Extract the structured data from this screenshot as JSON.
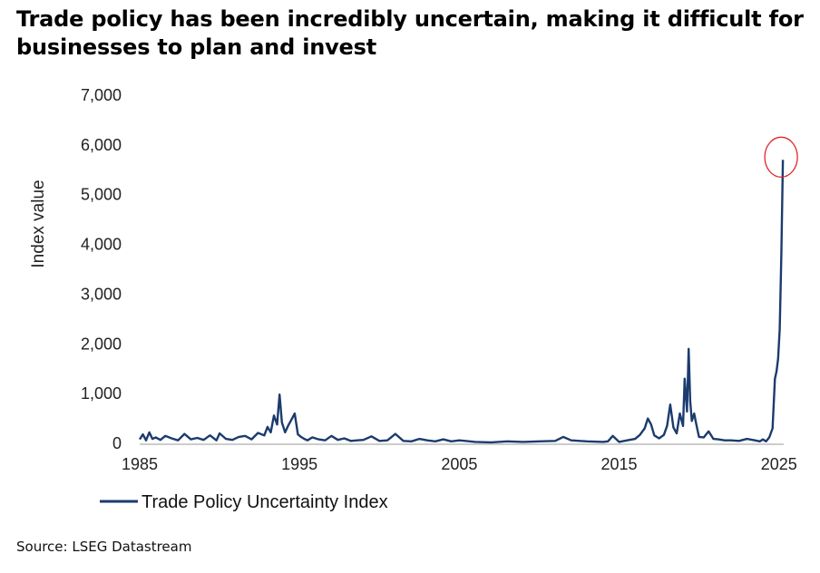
{
  "title": "Trade policy has been incredibly uncertain, making it difficult for businesses to plan and invest",
  "source": "Source: LSEG Datastream",
  "chart_data": {
    "type": "line",
    "title": "Trade policy has been incredibly uncertain, making it difficult for businesses to plan and invest",
    "xlabel": "",
    "ylabel": "Index value",
    "xlim": [
      1985,
      2025.3
    ],
    "ylim": [
      0,
      7000
    ],
    "x_ticks": [
      1985,
      1995,
      2005,
      2015,
      2025
    ],
    "y_ticks": [
      0,
      1000,
      2000,
      3000,
      4000,
      5000,
      6000,
      7000
    ],
    "y_tick_labels": [
      "0",
      "1,000",
      "2,000",
      "3,000",
      "4,000",
      "5,000",
      "6,000",
      "7,000"
    ],
    "grid": false,
    "legend_position": "bottom-left",
    "line_color": "#1c3b6e",
    "highlight_color": "#e0262a",
    "highlight_point": [
      2025.25,
      5700
    ],
    "series": [
      {
        "name": "Trade Policy Uncertainty Index",
        "x": [
          1985.0,
          1985.2,
          1985.4,
          1985.6,
          1985.8,
          1986.0,
          1986.3,
          1986.6,
          1987.0,
          1987.4,
          1987.8,
          1988.2,
          1988.6,
          1989.0,
          1989.4,
          1989.8,
          1990.0,
          1990.4,
          1990.8,
          1991.2,
          1991.6,
          1992.0,
          1992.4,
          1992.8,
          1993.0,
          1993.2,
          1993.4,
          1993.6,
          1993.75,
          1993.9,
          1994.1,
          1994.3,
          1994.5,
          1994.7,
          1994.9,
          1995.1,
          1995.3,
          1995.5,
          1995.8,
          1996.2,
          1996.6,
          1997.0,
          1997.4,
          1997.8,
          1998.2,
          1998.6,
          1999.0,
          1999.5,
          2000.0,
          2000.5,
          2001.0,
          2001.5,
          2002.0,
          2002.5,
          2003.0,
          2003.5,
          2004.0,
          2004.5,
          2005.0,
          2006.0,
          2007.0,
          2008.0,
          2009.0,
          2010.0,
          2011.0,
          2011.5,
          2012.0,
          2013.0,
          2014.0,
          2014.3,
          2014.6,
          2015.0,
          2015.5,
          2016.0,
          2016.3,
          2016.6,
          2016.8,
          2017.0,
          2017.2,
          2017.5,
          2017.8,
          2018.0,
          2018.2,
          2018.4,
          2018.6,
          2018.8,
          2019.0,
          2019.1,
          2019.25,
          2019.35,
          2019.45,
          2019.55,
          2019.7,
          2019.85,
          2020.0,
          2020.3,
          2020.6,
          2020.9,
          2021.2,
          2021.6,
          2022.0,
          2022.5,
          2023.0,
          2023.5,
          2023.8,
          2024.0,
          2024.2,
          2024.4,
          2024.6,
          2024.75,
          2024.85,
          2024.95,
          2025.05,
          2025.15,
          2025.25
        ],
        "values": [
          80,
          180,
          60,
          220,
          90,
          120,
          70,
          150,
          100,
          60,
          190,
          80,
          110,
          70,
          160,
          60,
          200,
          90,
          70,
          130,
          150,
          80,
          210,
          160,
          330,
          220,
          560,
          380,
          980,
          420,
          220,
          360,
          480,
          600,
          180,
          130,
          90,
          60,
          120,
          80,
          60,
          150,
          70,
          100,
          50,
          60,
          70,
          140,
          50,
          60,
          190,
          50,
          40,
          90,
          60,
          40,
          80,
          40,
          60,
          30,
          20,
          40,
          30,
          40,
          50,
          130,
          60,
          40,
          30,
          40,
          150,
          30,
          60,
          90,
          170,
          300,
          500,
          380,
          160,
          100,
          170,
          350,
          780,
          320,
          200,
          600,
          350,
          1300,
          640,
          1900,
          850,
          450,
          600,
          350,
          130,
          120,
          240,
          90,
          80,
          60,
          60,
          50,
          90,
          60,
          40,
          80,
          40,
          120,
          300,
          1300,
          1450,
          1700,
          2300,
          3800,
          5700
        ]
      }
    ]
  }
}
